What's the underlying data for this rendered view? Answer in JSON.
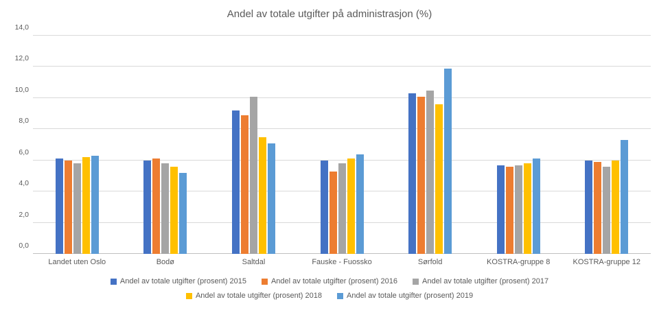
{
  "chart_data": {
    "type": "bar",
    "title": "Andel av totale utgifter på administrasjon (%)",
    "xlabel": "",
    "ylabel": "",
    "ylim": [
      0,
      14
    ],
    "ytick_step": 2,
    "ytick_labels": [
      "0,0",
      "2,0",
      "4,0",
      "6,0",
      "8,0",
      "10,0",
      "12,0",
      "14,0"
    ],
    "grid": true,
    "legend_position": "bottom",
    "legend_rows": [
      [
        0,
        1,
        2
      ],
      [
        3,
        4
      ]
    ],
    "categories": [
      "Landet uten Oslo",
      "Bodø",
      "Saltdal",
      "Fauske - Fuossko",
      "Sørfold",
      "KOSTRA-gruppe 8",
      "KOSTRA-gruppe 12"
    ],
    "series": [
      {
        "name": "Andel av totale utgifter (prosent) 2015",
        "color": "#4472C4",
        "values": [
          6.1,
          6.0,
          9.2,
          6.0,
          10.3,
          5.7,
          6.0
        ]
      },
      {
        "name": "Andel av totale utgifter (prosent) 2016",
        "color": "#ED7D31",
        "values": [
          6.0,
          6.1,
          8.9,
          5.3,
          10.1,
          5.6,
          5.9
        ]
      },
      {
        "name": "Andel av totale utgifter (prosent) 2017",
        "color": "#A5A5A5",
        "values": [
          5.8,
          5.8,
          10.1,
          5.8,
          10.5,
          5.7,
          5.6
        ]
      },
      {
        "name": "Andel av totale utgifter (prosent) 2018",
        "color": "#FFC000",
        "values": [
          6.2,
          5.6,
          7.5,
          6.1,
          9.6,
          5.8,
          6.0
        ]
      },
      {
        "name": "Andel av totale utgifter (prosent) 2019",
        "color": "#5B9BD5",
        "values": [
          6.3,
          5.2,
          7.1,
          6.4,
          11.9,
          6.1,
          7.3
        ]
      }
    ]
  }
}
